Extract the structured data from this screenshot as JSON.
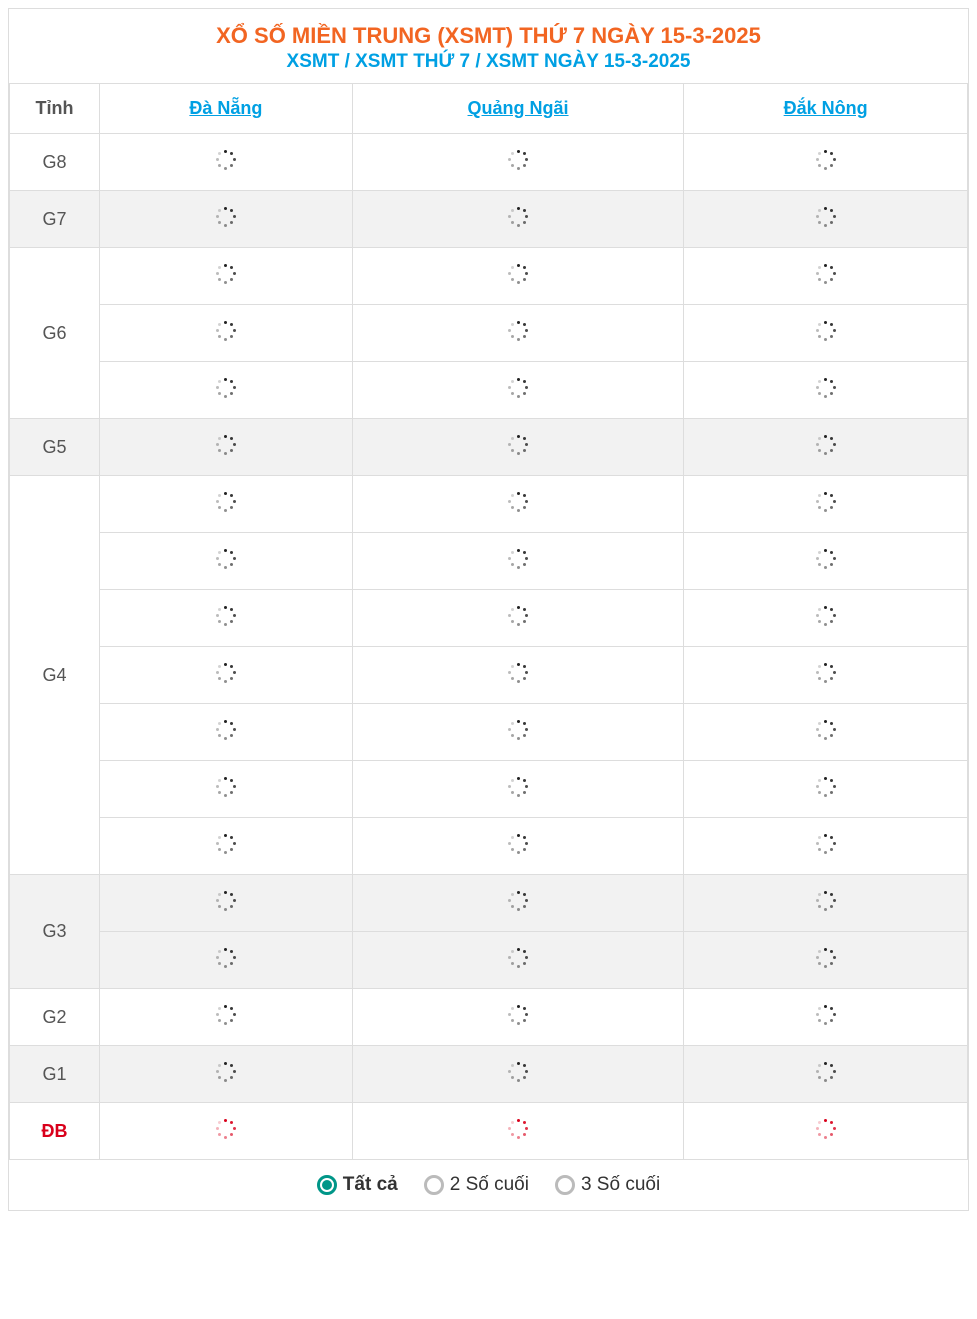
{
  "header": {
    "title_main": "XỔ SỐ MIỀN TRUNG (XSMT) THỨ 7 NGÀY 15-3-2025",
    "title_sub": "XSMT / XSMT THỨ 7 / XSMT NGÀY 15-3-2025"
  },
  "columns": {
    "label_header": "Tỉnh",
    "provinces": [
      "Đà Nẵng",
      "Quảng Ngãi",
      "Đắk Nông"
    ]
  },
  "prizes": [
    {
      "label": "G8",
      "rows": 1,
      "shaded": false,
      "special": false
    },
    {
      "label": "G7",
      "rows": 1,
      "shaded": true,
      "special": false
    },
    {
      "label": "G6",
      "rows": 3,
      "shaded": false,
      "special": false
    },
    {
      "label": "G5",
      "rows": 1,
      "shaded": true,
      "special": false
    },
    {
      "label": "G4",
      "rows": 7,
      "shaded": false,
      "special": false
    },
    {
      "label": "G3",
      "rows": 2,
      "shaded": true,
      "special": false
    },
    {
      "label": "G2",
      "rows": 1,
      "shaded": false,
      "special": false
    },
    {
      "label": "G1",
      "rows": 1,
      "shaded": true,
      "special": false
    },
    {
      "label": "ĐB",
      "rows": 1,
      "shaded": false,
      "special": true
    }
  ],
  "footer": {
    "options": [
      "Tất cả",
      "2 Số cuối",
      "3 Số cuối"
    ],
    "selected_index": 0
  },
  "colors": {
    "accent_orange": "#f26522",
    "accent_blue": "#00a0e3",
    "accent_red": "#d9001b",
    "accent_teal": "#009688",
    "border": "#dddddd",
    "shaded_bg": "#f2f2f2",
    "text": "#555555"
  }
}
